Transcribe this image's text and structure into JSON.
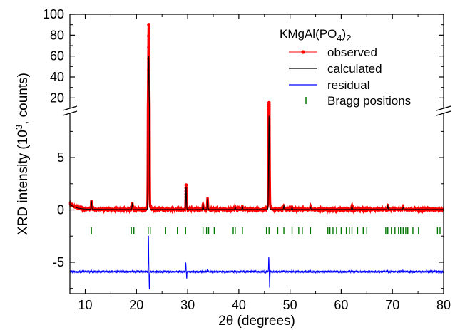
{
  "chart_data": {
    "type": "line",
    "title": "",
    "xlabel": "2θ (degrees)",
    "ylabel_parts": [
      "XRD intensity (10",
      "3",
      ", counts)"
    ],
    "xlim": [
      7,
      80
    ],
    "x_ticks": [
      10,
      20,
      30,
      40,
      50,
      60,
      70,
      80
    ],
    "y_axis_broken": true,
    "y_lower_range": [
      -8,
      9.5
    ],
    "y_lower_ticks": [
      -5,
      0,
      5
    ],
    "y_upper_range": [
      10,
      100
    ],
    "y_upper_ticks": [
      20,
      40,
      60,
      80,
      100
    ],
    "legend": {
      "title_parts": [
        "KMgAl(PO",
        "4",
        ")",
        "2"
      ],
      "placement": "top-right",
      "entries": [
        {
          "name": "observed",
          "color": "#ff0000"
        },
        {
          "name": "calculated",
          "color": "#000000"
        },
        {
          "name": "residual",
          "color": "#0000ff"
        },
        {
          "name": "Bragg positions",
          "color": "#007700"
        }
      ]
    },
    "baseline": {
      "observed": 0.05,
      "residual": -5.9
    },
    "peaks": [
      {
        "x": 11.2,
        "obs": 0.9,
        "calc": 0.85,
        "res": -5.75
      },
      {
        "x": 19.2,
        "obs": 0.65,
        "calc": 0.6,
        "res": -5.8
      },
      {
        "x": 22.4,
        "obs": 91,
        "calc": 60,
        "res": -2.4,
        "res_min": -7.6
      },
      {
        "x": 29.7,
        "obs": 2.4,
        "calc": 2.2,
        "res": -5.1,
        "res_min": -6.5
      },
      {
        "x": 33.0,
        "obs": 0.6,
        "calc": 0.55,
        "res": -5.8
      },
      {
        "x": 33.9,
        "obs": 1.2,
        "calc": 1.1,
        "res": -5.7
      },
      {
        "x": 39.3,
        "obs": 0.35,
        "calc": 0.3,
        "res": -5.8
      },
      {
        "x": 40.7,
        "obs": 0.4,
        "calc": 0.35,
        "res": -5.8
      },
      {
        "x": 45.9,
        "obs": 15.5,
        "calc": 9,
        "res": -4.4,
        "res_min": -7.5
      },
      {
        "x": 48.8,
        "obs": 0.45,
        "calc": 0.4,
        "res": -5.8
      },
      {
        "x": 50.4,
        "obs": 0.3,
        "calc": 0.25,
        "res": -5.8
      },
      {
        "x": 54.0,
        "obs": 0.35,
        "calc": 0.3,
        "res": -5.8
      },
      {
        "x": 62.1,
        "obs": 0.45,
        "calc": 0.4,
        "res": -5.8
      },
      {
        "x": 69.1,
        "obs": 0.45,
        "calc": 0.4,
        "res": -5.8
      },
      {
        "x": 72.1,
        "obs": 0.3,
        "calc": 0.25,
        "res": -5.8
      }
    ],
    "bragg_y": -2.0,
    "bragg_positions": [
      11.2,
      19.0,
      19.5,
      22.3,
      22.7,
      25.7,
      28.0,
      29.6,
      33.0,
      33.7,
      34.1,
      35.2,
      38.9,
      39.3,
      40.7,
      45.4,
      45.9,
      47.6,
      48.8,
      50.4,
      51.7,
      52.4,
      54.0,
      57.4,
      57.8,
      58.4,
      59.1,
      60.0,
      61.0,
      61.6,
      62.1,
      63.2,
      64.3,
      65.0,
      68.7,
      69.1,
      69.8,
      70.5,
      71.2,
      71.6,
      72.1,
      72.6,
      73.0,
      74.0,
      75.1,
      78.8,
      79.3
    ]
  }
}
